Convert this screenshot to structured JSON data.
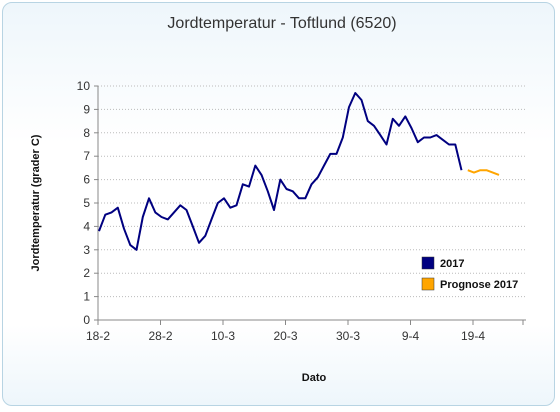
{
  "chart_data": {
    "type": "line",
    "title": "Jordtemperatur - Toftlund (6520)",
    "xlabel": "Dato",
    "ylabel": "Jordtemperatur (grader C)",
    "ylim": [
      0,
      10
    ],
    "yticks": [
      "0",
      "1",
      "2",
      "3",
      "4",
      "5",
      "6",
      "7",
      "8",
      "9",
      "10"
    ],
    "xticks": [
      "18-2",
      "28-2",
      "10-3",
      "20-3",
      "30-3",
      "9-4",
      "19-4"
    ],
    "grid": "horizontal dotted",
    "legend": "bottom-right",
    "series": [
      {
        "name": "2017",
        "color": "#000080",
        "x_start": "18-2",
        "values": [
          3.8,
          4.5,
          4.6,
          4.8,
          3.9,
          3.2,
          3.0,
          4.4,
          5.2,
          4.6,
          4.4,
          4.3,
          4.6,
          4.9,
          4.7,
          4.0,
          3.3,
          3.6,
          4.3,
          5.0,
          5.2,
          4.8,
          4.9,
          5.8,
          5.7,
          6.6,
          6.2,
          5.5,
          4.7,
          6.0,
          5.6,
          5.5,
          5.2,
          5.2,
          5.8,
          6.1,
          6.6,
          7.1,
          7.1,
          7.8,
          9.1,
          9.7,
          9.4,
          8.5,
          8.3,
          7.9,
          7.5,
          8.6,
          8.3,
          8.7,
          8.2,
          7.6,
          7.8,
          7.8,
          7.9,
          7.7,
          7.5,
          7.5,
          6.4
        ]
      },
      {
        "name": "Prognose 2017",
        "color": "#FFA500",
        "x_start": "18-4",
        "values": [
          6.4,
          6.3,
          6.4,
          6.4,
          6.3,
          6.2
        ]
      }
    ]
  }
}
